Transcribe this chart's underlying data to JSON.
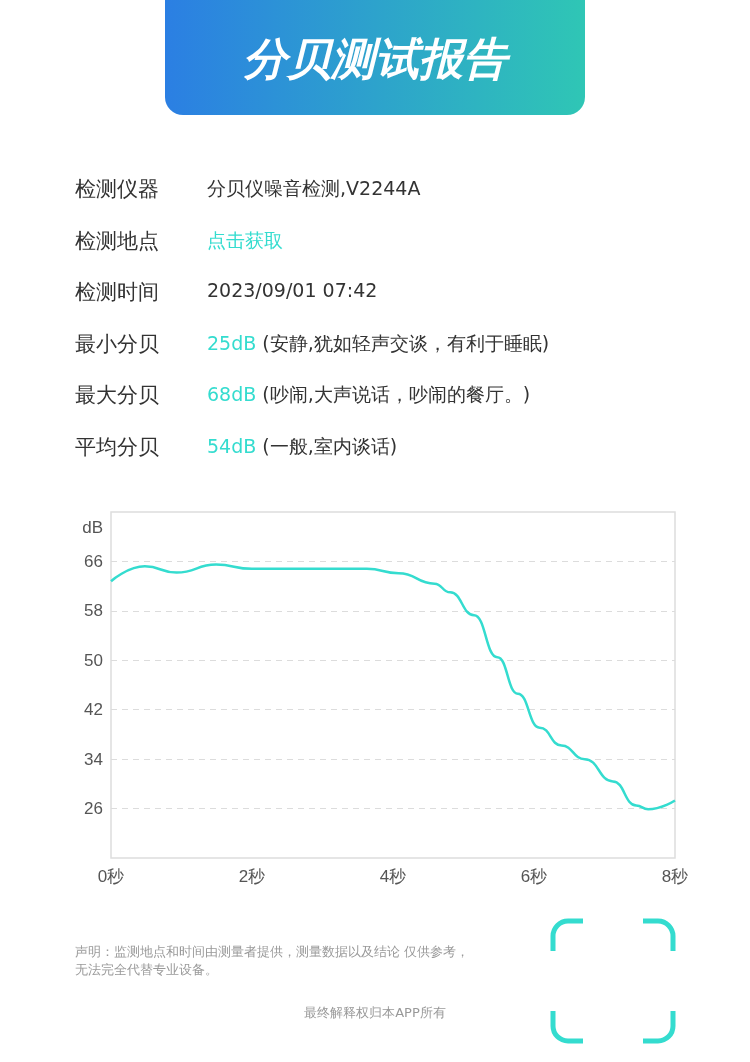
{
  "chart_data": {
    "type": "line",
    "title": "分贝测试报告",
    "ylabel": "dB",
    "annotations": [
      "检测仪器",
      "分贝仪噪音检测,V2244A",
      "检测地点",
      "点击获取",
      "检测时间",
      "2023/09/01 07:42",
      "最小分贝",
      "25dB",
      "(安静,犹如轻声交谈，有利于睡眠)",
      "最大分贝",
      "68dB",
      "(吵闹,大声说话，吵闹的餐厅。)",
      "平均分贝",
      "54dB",
      "(一般,室内谈话)",
      "声明：监测地点和时间由测量者提供，测量数据以及结论 仅供参考，",
      "无法完全代替专业设备。",
      "最终解释权归本APP所有"
    ],
    "x": [
      0,
      0.48,
      0.93,
      1.49,
      2.0,
      3.63,
      4.08,
      4.59,
      4.81,
      5.15,
      5.48,
      5.77,
      6.08,
      6.39,
      6.72,
      7.12,
      7.45,
      7.62,
      8.0
    ],
    "series": [
      {
        "color": "#34dccf",
        "values": [
          62.8,
          65.2,
          64.2,
          65.5,
          64.8,
          64.8,
          64.1,
          62.4,
          61.0,
          57.3,
          50.5,
          44.6,
          39.1,
          36.2,
          34.0,
          30.4,
          26.5,
          25.9,
          27.3
        ]
      }
    ],
    "xlim": [
      0,
      8
    ],
    "xticks": [
      {
        "value": 0,
        "label": "0秒"
      },
      {
        "value": 2,
        "label": "2秒"
      },
      {
        "value": 4,
        "label": "4秒"
      },
      {
        "value": 6,
        "label": "6秒"
      },
      {
        "value": 8,
        "label": "8秒"
      }
    ],
    "ylim": [
      18,
      74
    ],
    "yticks": [
      26,
      34,
      42,
      50,
      58,
      66
    ],
    "grid": "y",
    "line_style": "solid",
    "marker": "none"
  }
}
